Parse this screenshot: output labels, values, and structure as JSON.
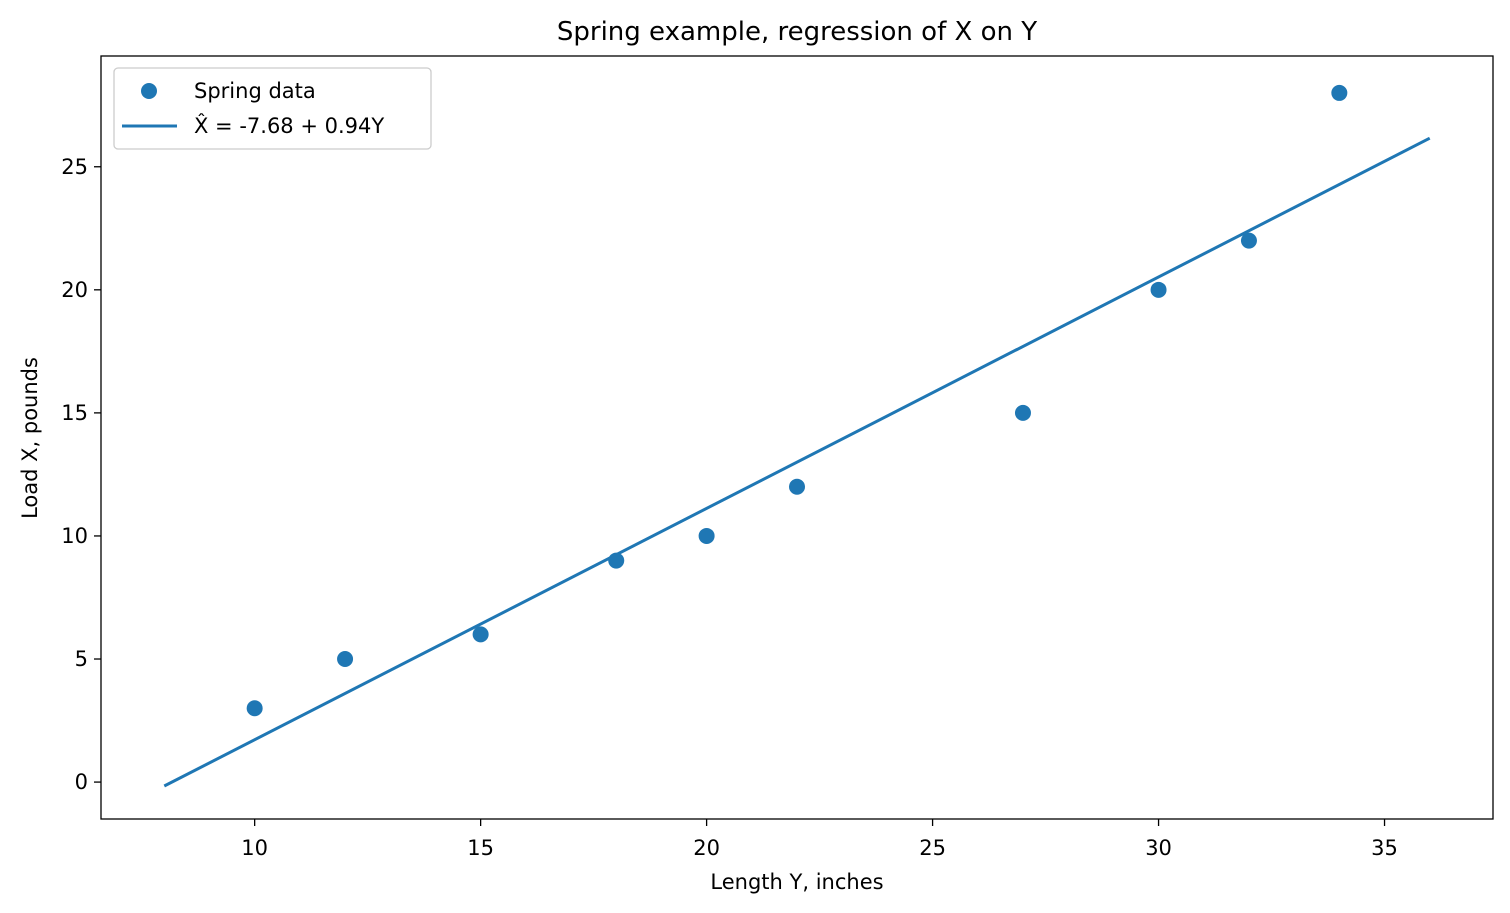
{
  "chart_data": {
    "type": "scatter",
    "title": "Spring example, regression of X on Y",
    "xlabel": "Length Y, inches",
    "ylabel": "Load X, pounds",
    "xlim": [
      6.6,
      37.4
    ],
    "ylim": [
      -1.5,
      29.5
    ],
    "xticks": [
      10,
      15,
      20,
      25,
      30,
      35
    ],
    "yticks": [
      0,
      5,
      10,
      15,
      20,
      25
    ],
    "grid": false,
    "legend_position": "top-left",
    "series": [
      {
        "name": "Spring data",
        "kind": "scatter",
        "color": "#1f77b4",
        "x": [
          10,
          12,
          15,
          18,
          20,
          22,
          27,
          30,
          32,
          34
        ],
        "y": [
          3,
          5,
          6,
          9,
          10,
          12,
          15,
          20,
          22,
          28
        ]
      },
      {
        "name": "X̂ = -7.68 + 0.94Y",
        "kind": "line",
        "color": "#1f77b4",
        "x": [
          8,
          36
        ],
        "y": [
          -0.16,
          26.16
        ]
      }
    ]
  }
}
